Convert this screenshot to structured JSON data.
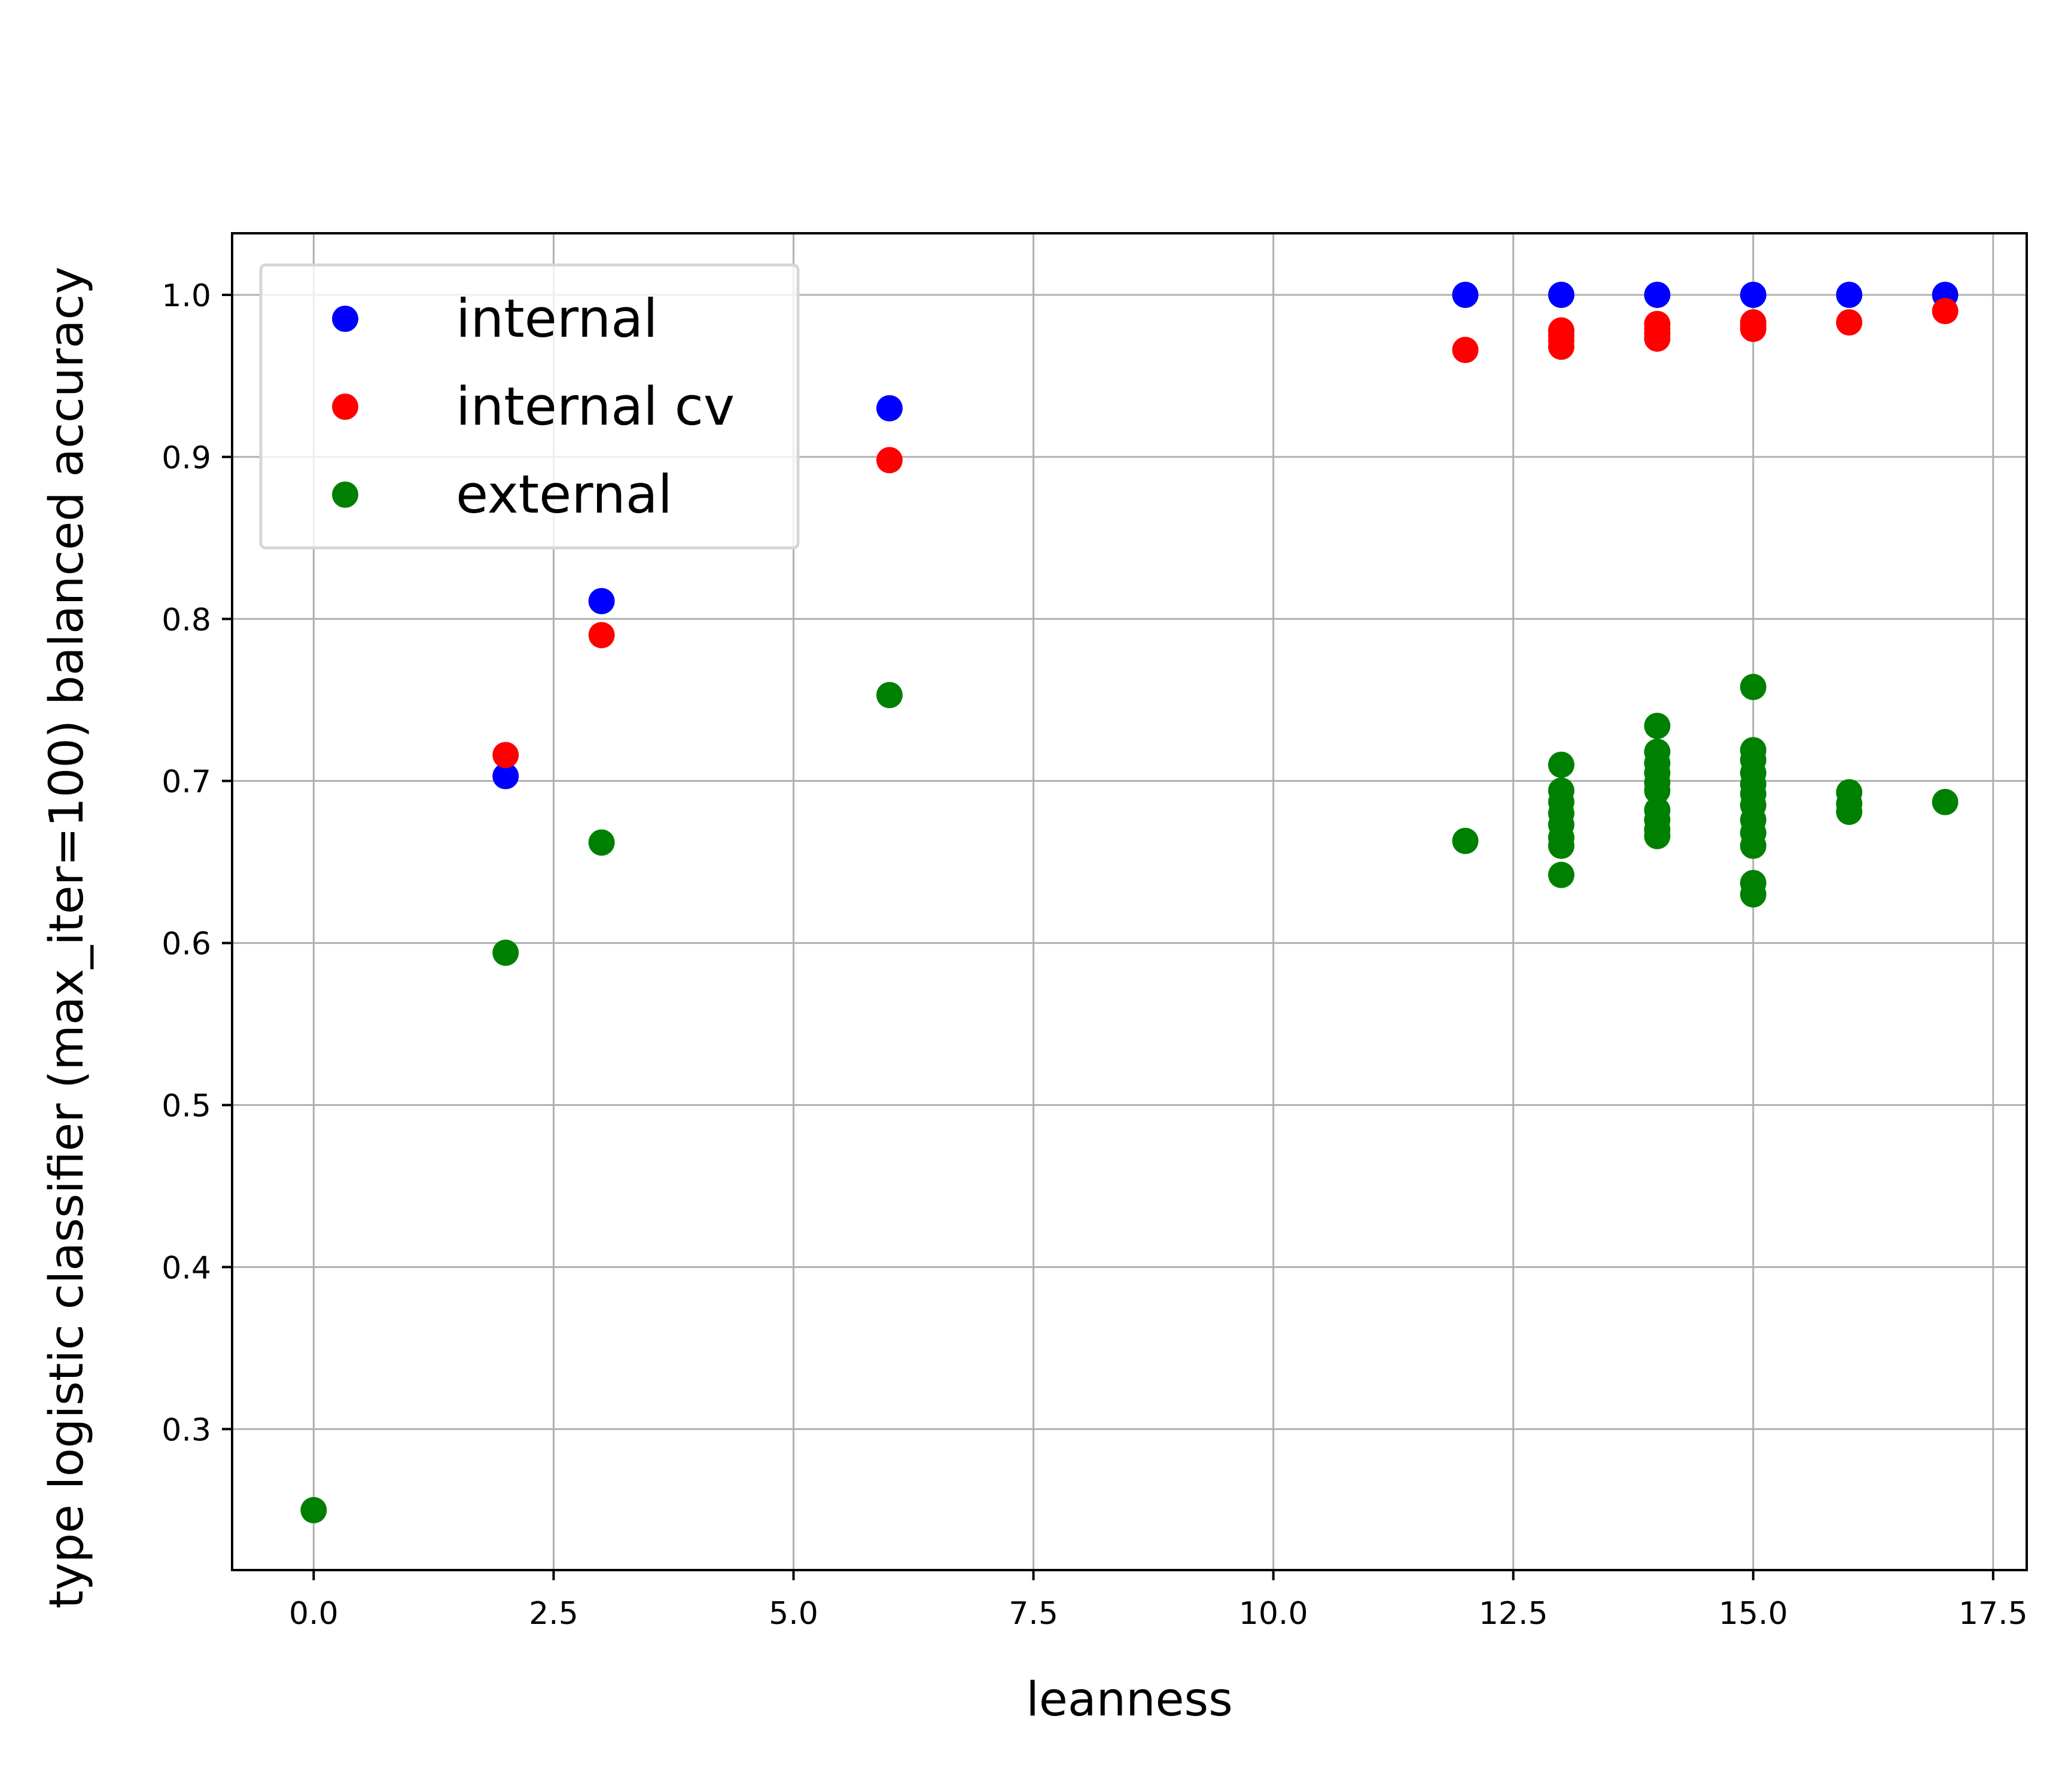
{
  "chart_data": {
    "type": "scatter",
    "xlabel": "leanness",
    "ylabel": "type logistic classifier (max_iter=100) balanced accuracy",
    "xlim": [
      -0.85,
      17.85
    ],
    "ylim": [
      0.213,
      1.038
    ],
    "xticks": [
      0.0,
      2.5,
      5.0,
      7.5,
      10.0,
      12.5,
      15.0,
      17.5
    ],
    "xtick_labels": [
      "0.0",
      "2.5",
      "5.0",
      "7.5",
      "10.0",
      "12.5",
      "15.0",
      "17.5"
    ],
    "yticks": [
      0.3,
      0.4,
      0.5,
      0.6,
      0.7,
      0.8,
      0.9,
      1.0
    ],
    "ytick_labels": [
      "0.3",
      "0.4",
      "0.5",
      "0.6",
      "0.7",
      "0.8",
      "0.9",
      "1.0"
    ],
    "grid": true,
    "legend_position": "top-left",
    "series": [
      {
        "name": "internal",
        "color": "#0000ff",
        "points": [
          [
            2,
            0.703
          ],
          [
            3,
            0.811
          ],
          [
            6,
            0.93
          ],
          [
            12,
            1.0
          ],
          [
            13,
            1.0
          ],
          [
            14,
            1.0
          ],
          [
            15,
            1.0
          ],
          [
            16,
            1.0
          ],
          [
            17,
            1.0
          ]
        ]
      },
      {
        "name": "internal cv",
        "color": "#ff0000",
        "points": [
          [
            2,
            0.716
          ],
          [
            3,
            0.79
          ],
          [
            6,
            0.898
          ],
          [
            12,
            0.966
          ],
          [
            13,
            0.978
          ],
          [
            13,
            0.975
          ],
          [
            13,
            0.972
          ],
          [
            13,
            0.968
          ],
          [
            14,
            0.982
          ],
          [
            14,
            0.979
          ],
          [
            14,
            0.976
          ],
          [
            14,
            0.973
          ],
          [
            15,
            0.983
          ],
          [
            15,
            0.981
          ],
          [
            15,
            0.979
          ],
          [
            16,
            0.983
          ],
          [
            17,
            0.99
          ]
        ]
      },
      {
        "name": "external",
        "color": "#008000",
        "points": [
          [
            0,
            0.25
          ],
          [
            2,
            0.594
          ],
          [
            3,
            0.662
          ],
          [
            6,
            0.753
          ],
          [
            12,
            0.663
          ],
          [
            13,
            0.71
          ],
          [
            13,
            0.694
          ],
          [
            13,
            0.687
          ],
          [
            13,
            0.68
          ],
          [
            13,
            0.673
          ],
          [
            13,
            0.665
          ],
          [
            13,
            0.66
          ],
          [
            13,
            0.642
          ],
          [
            14,
            0.734
          ],
          [
            14,
            0.718
          ],
          [
            14,
            0.711
          ],
          [
            14,
            0.705
          ],
          [
            14,
            0.699
          ],
          [
            14,
            0.694
          ],
          [
            14,
            0.682
          ],
          [
            14,
            0.676
          ],
          [
            14,
            0.67
          ],
          [
            14,
            0.666
          ],
          [
            15,
            0.758
          ],
          [
            15,
            0.719
          ],
          [
            15,
            0.713
          ],
          [
            15,
            0.705
          ],
          [
            15,
            0.698
          ],
          [
            15,
            0.692
          ],
          [
            15,
            0.685
          ],
          [
            15,
            0.676
          ],
          [
            15,
            0.668
          ],
          [
            15,
            0.66
          ],
          [
            15,
            0.637
          ],
          [
            15,
            0.63
          ],
          [
            16,
            0.693
          ],
          [
            16,
            0.686
          ],
          [
            16,
            0.681
          ],
          [
            17,
            0.687
          ]
        ]
      }
    ]
  }
}
